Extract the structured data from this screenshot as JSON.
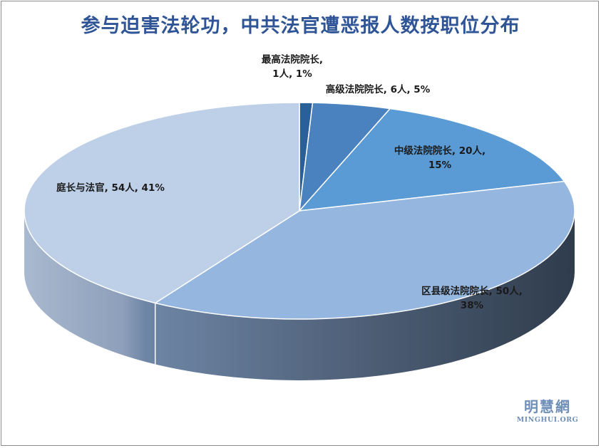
{
  "chart_data": {
    "type": "pie",
    "title": "参与迫害法轮功，中共法官遭恶报人数按职位分布",
    "slices": [
      {
        "name": "最高法院院长",
        "value": 1,
        "percent": "1%",
        "color": "#2b5f99",
        "label_lines": [
          "最高法院院长,",
          "1人, 1%"
        ]
      },
      {
        "name": "高级法院院长",
        "value": 6,
        "percent": "5%",
        "color": "#4a82bf",
        "label_lines": [
          "高级法院院长, 6人, 5%"
        ]
      },
      {
        "name": "中级法院院长",
        "value": 20,
        "percent": "15%",
        "color": "#5b9bd5",
        "label_lines": [
          "中级法院院长, 20人,",
          "15%"
        ]
      },
      {
        "name": "区县级法院院长",
        "value": 50,
        "percent": "38%",
        "color": "#95b6de",
        "label_lines": [
          "区县级法院院长, 50人,",
          "38%"
        ]
      },
      {
        "name": "庭长与法官",
        "value": 54,
        "percent": "41%",
        "color": "#bdd0e8",
        "label_lines": [
          "庭长与法官, 54人, 41%"
        ]
      }
    ]
  },
  "watermark": {
    "cn": "明慧網",
    "en": "MINGHUI.ORG"
  }
}
